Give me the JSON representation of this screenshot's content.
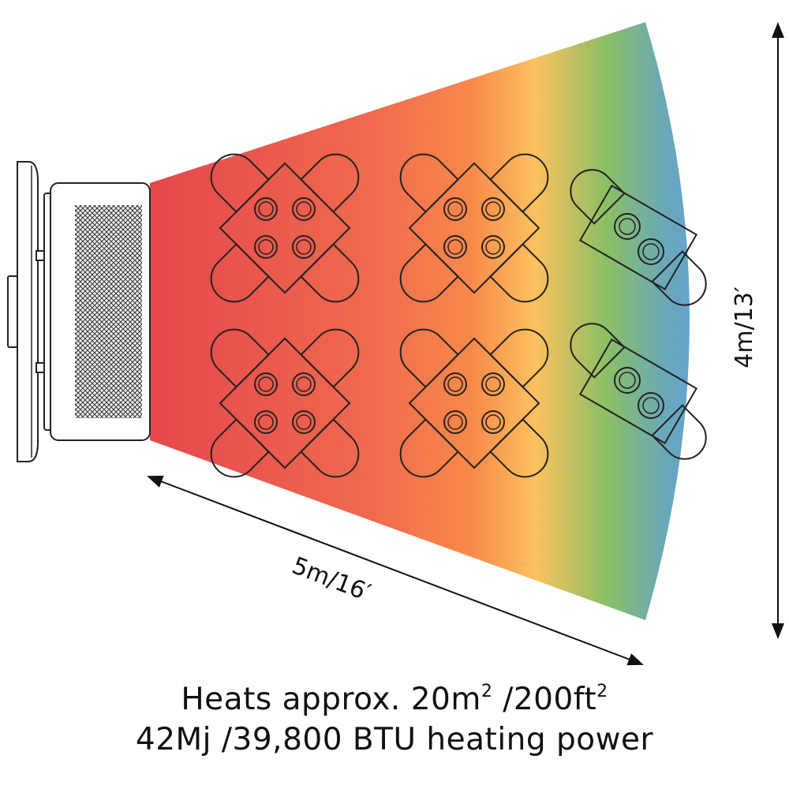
{
  "dimensions": {
    "depth_label": "5m/16′",
    "width_label": "4m/13′"
  },
  "caption": {
    "line1_pre": "Heats approx. 20m",
    "line1_sup1": "2",
    "line1_mid": " /200ft",
    "line1_sup2": "2",
    "line2": "42Mj /39,800 BTU heating power"
  },
  "heat_gradient": [
    "#e5474c",
    "#f06a4e",
    "#f9894a",
    "#fcc15e",
    "#8cc063",
    "#6aa8b7",
    "#5b9ef0"
  ],
  "line_color": "#222222",
  "tables": [
    {
      "kind": "four-seat"
    },
    {
      "kind": "four-seat"
    },
    {
      "kind": "two-seat"
    },
    {
      "kind": "four-seat"
    },
    {
      "kind": "four-seat"
    },
    {
      "kind": "two-seat"
    }
  ]
}
